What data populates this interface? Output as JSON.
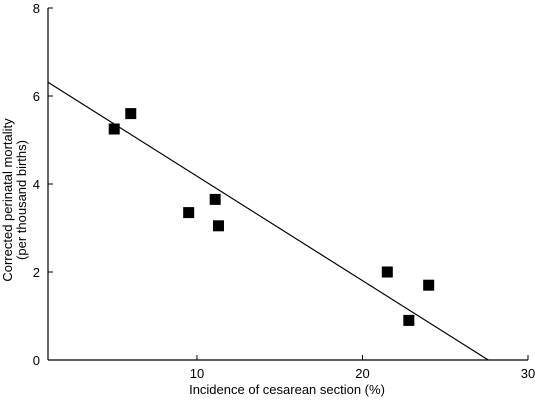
{
  "chart_data": {
    "type": "scatter",
    "xlabel": "Incidence of cesarean section (%)",
    "ylabel_lines": [
      "Corrected perinatal mortality",
      "(per thousand births)"
    ],
    "xlim": [
      1,
      30
    ],
    "ylim": [
      0,
      8
    ],
    "xticks": [
      10,
      20,
      30
    ],
    "yticks": [
      0,
      2,
      4,
      6,
      8
    ],
    "points": [
      {
        "x": 5.0,
        "y": 5.25
      },
      {
        "x": 6.0,
        "y": 5.6
      },
      {
        "x": 9.5,
        "y": 3.35
      },
      {
        "x": 11.1,
        "y": 3.65
      },
      {
        "x": 11.3,
        "y": 3.05
      },
      {
        "x": 21.5,
        "y": 2.0
      },
      {
        "x": 22.8,
        "y": 0.9
      },
      {
        "x": 24.0,
        "y": 1.7
      }
    ],
    "regression_line": {
      "x1": 0,
      "y1": 6.55,
      "x2": 27.6,
      "y2": 0
    },
    "grid": false,
    "marker": "square",
    "color": "#000000"
  }
}
